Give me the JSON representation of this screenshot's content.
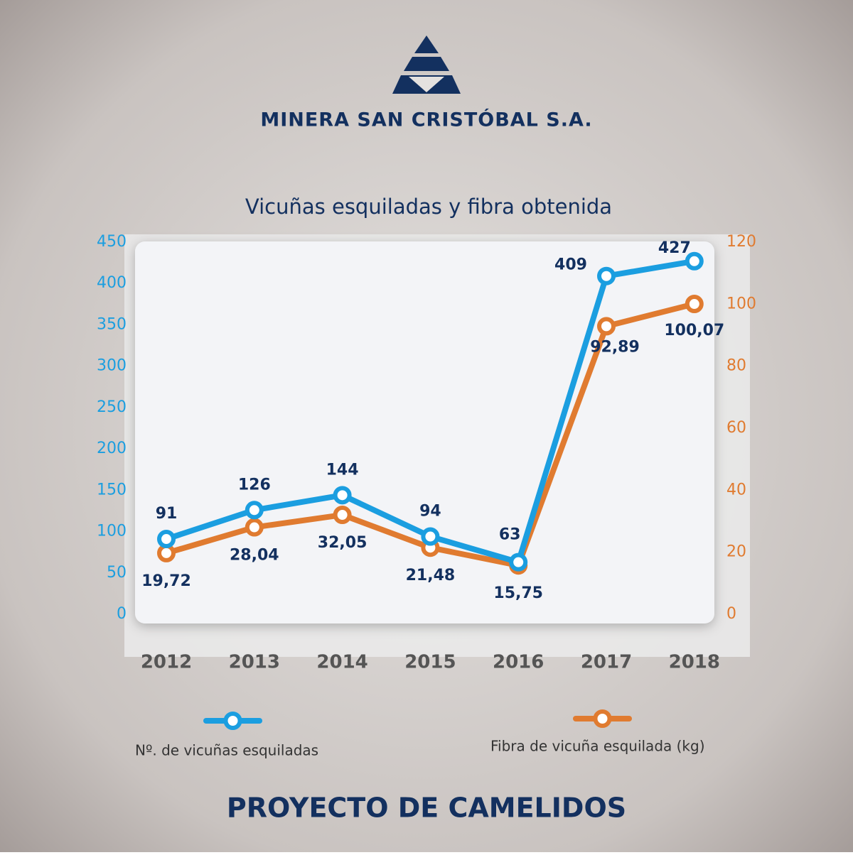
{
  "brand": "MINERA SAN CRISTÓBAL S.A.",
  "footer": "PROYECTO DE CAMELIDOS",
  "chart_data": {
    "type": "line",
    "title": "Vicuñas esquiladas y fibra obtenida",
    "categories": [
      "2012",
      "2013",
      "2014",
      "2015",
      "2016",
      "2017",
      "2018"
    ],
    "series": [
      {
        "name": "Nº. de vicuñas esquiladas",
        "color": "#1b9ee0",
        "values": [
          91,
          126,
          144,
          94,
          63,
          409,
          427
        ]
      },
      {
        "name": "Fibra de vicuña esquilada (kg)",
        "color": "#e07b30",
        "axis": "y2",
        "values": [
          19.72,
          28.04,
          32.05,
          21.48,
          15.75,
          92.89,
          100.07
        ],
        "value_labels": [
          "19,72",
          "28,04",
          "32,05",
          "21,48",
          "15,75",
          "92,89",
          "100,07"
        ]
      }
    ],
    "ylim": [
      0,
      450
    ],
    "yticks": [
      0,
      50,
      100,
      150,
      200,
      250,
      300,
      350,
      400,
      450
    ],
    "y2lim": [
      0,
      120
    ],
    "y2ticks": [
      0,
      20,
      40,
      60,
      80,
      100,
      120
    ],
    "grid": false
  }
}
